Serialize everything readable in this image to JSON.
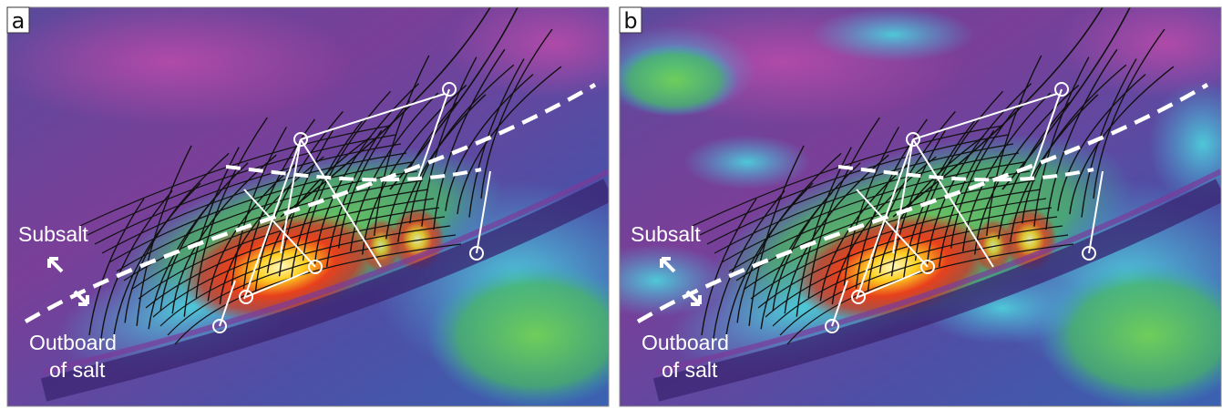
{
  "panels": [
    {
      "label": "a",
      "subsalt": "Subsalt",
      "outboard": [
        "Outboard",
        "of salt"
      ]
    },
    {
      "label": "b",
      "subsalt": "Subsalt",
      "outboard": [
        "Outboard",
        "of salt"
      ]
    }
  ]
}
